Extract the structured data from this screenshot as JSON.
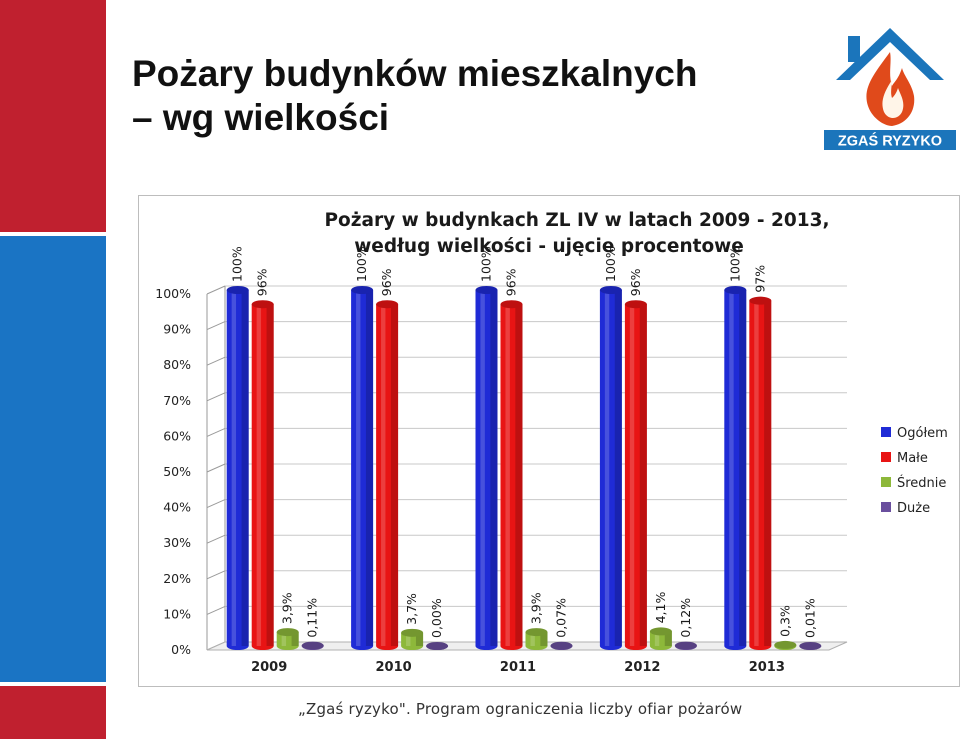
{
  "slide": {
    "title_line1": "Pożary budynków mieszkalnych",
    "title_line2": "– wg wielkości",
    "footer": "„Zgaś ryzyko\". Program ograniczenia liczby ofiar pożarów"
  },
  "logo": {
    "text": "ZGAŚ RYZYKO",
    "icon": "house-flame-icon"
  },
  "colors": {
    "stripe_red": "#c0202f",
    "stripe_blue": "#1a74c4",
    "logo_blue": "#1b75bb",
    "logo_flame": "#e04a1b"
  },
  "chart_data": {
    "type": "bar",
    "title": "Pożary w budynkach ZL IV w latach 2009 - 2013, według wielkości - ujęcie procentowe",
    "categories": [
      "2009",
      "2010",
      "2011",
      "2012",
      "2013"
    ],
    "ylim": [
      0,
      100
    ],
    "yticks": [
      "0%",
      "10%",
      "20%",
      "30%",
      "40%",
      "50%",
      "60%",
      "70%",
      "80%",
      "90%",
      "100%"
    ],
    "legend_position": "right",
    "grid": true,
    "series": [
      {
        "name": "Ogółem",
        "color": "#1f2bd6",
        "values": [
          100,
          100,
          100,
          100,
          100
        ],
        "labels": [
          "100%",
          "100%",
          "100%",
          "100%",
          "100%"
        ]
      },
      {
        "name": "Małe",
        "color": "#e81414",
        "values": [
          96,
          96,
          96,
          96,
          97
        ],
        "labels": [
          "96%",
          "96%",
          "96%",
          "96%",
          "97%"
        ]
      },
      {
        "name": "Średnie",
        "color": "#8db83a",
        "values": [
          3.9,
          3.7,
          3.9,
          4.1,
          0.3
        ],
        "labels": [
          "3,9%",
          "3,7%",
          "3,9%",
          "4,1%",
          "0,3%"
        ]
      },
      {
        "name": "Duże",
        "color": "#6a4f9e",
        "values": [
          0.11,
          0.0,
          0.07,
          0.12,
          0.01
        ],
        "labels": [
          "0,11%",
          "0,00%",
          "0,07%",
          "0,12%",
          "0,01%"
        ]
      }
    ]
  }
}
